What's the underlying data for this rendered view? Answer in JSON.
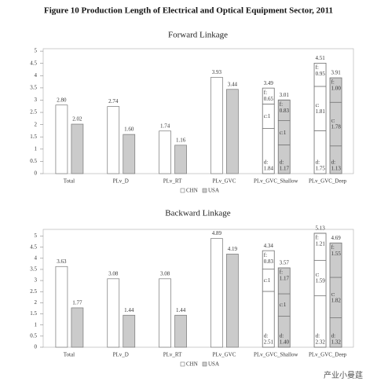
{
  "title": "Figure 10 Production Length of Electrical and Optical Equipment Sector, 2011",
  "watermark": "产业小曼莛",
  "chart_data": [
    {
      "type": "bar",
      "title": "Forward Linkage",
      "categories": [
        "Total",
        "PLv_D",
        "PLv_RT",
        "PLv_GVC",
        "PLv_GVC_Shallow",
        "PLv_GVC_Deep"
      ],
      "ylim": [
        0,
        5.1
      ],
      "yticks": [
        0,
        0.5,
        1,
        1.5,
        2,
        2.5,
        3,
        3.5,
        4,
        4.5,
        5
      ],
      "series": [
        {
          "name": "CHN",
          "color": "#ffffff",
          "values": [
            2.8,
            2.74,
            1.74,
            3.93,
            3.49,
            4.51
          ],
          "value_labels": [
            "2.80",
            "2.74",
            "1.74",
            "3.93",
            "3.49",
            "4.51"
          ],
          "segments": [
            null,
            null,
            null,
            null,
            [
              {
                "label": "d:",
                "value": 1.84,
                "value_label": "1.84"
              },
              {
                "label": "c:",
                "value": 1,
                "value_label": "1"
              },
              {
                "label": "f:",
                "value": 0.65,
                "value_label": "0.65"
              }
            ],
            [
              {
                "label": "d:",
                "value": 1.75,
                "value_label": "1.75"
              },
              {
                "label": "c:",
                "value": 1.81,
                "value_label": "1.81"
              },
              {
                "label": "f:",
                "value": 0.95,
                "value_label": "0.95"
              }
            ]
          ]
        },
        {
          "name": "USA",
          "color": "#cbcbcb",
          "values": [
            2.02,
            1.6,
            1.16,
            3.44,
            3.01,
            3.91
          ],
          "value_labels": [
            "2.02",
            "1.60",
            "1.16",
            "3.44",
            "3.01",
            "3.91"
          ],
          "segments": [
            null,
            null,
            null,
            null,
            [
              {
                "label": "d:",
                "value": 1.17,
                "value_label": "1.17"
              },
              {
                "label": "c:",
                "value": 1,
                "value_label": "1"
              },
              {
                "label": "f:",
                "value": 0.83,
                "value_label": "0.83"
              }
            ],
            [
              {
                "label": "d:",
                "value": 1.13,
                "value_label": "1.13"
              },
              {
                "label": "c:",
                "value": 1.78,
                "value_label": "1.78"
              },
              {
                "label": "f:",
                "value": 1,
                "value_label": "1.00"
              }
            ]
          ]
        }
      ]
    },
    {
      "type": "bar",
      "title": "Backward Linkage",
      "categories": [
        "Total",
        "PLv_D",
        "PLv_RT",
        "PLv_GVC",
        "PLv_GVC_Shallow",
        "PLv_GVC_Deep"
      ],
      "ylim": [
        0,
        5.3
      ],
      "yticks": [
        0,
        0.5,
        1,
        1.5,
        2,
        2.5,
        3,
        3.5,
        4,
        4.5,
        5
      ],
      "series": [
        {
          "name": "CHN",
          "color": "#ffffff",
          "values": [
            3.63,
            3.08,
            3.08,
            4.89,
            4.34,
            5.13
          ],
          "value_labels": [
            "3.63",
            "3.08",
            "3.08",
            "4.89",
            "4.34",
            "5.13"
          ],
          "segments": [
            null,
            null,
            null,
            null,
            [
              {
                "label": "d:",
                "value": 2.51,
                "value_label": "2.51"
              },
              {
                "label": "c:",
                "value": 1,
                "value_label": "1"
              },
              {
                "label": "f:",
                "value": 0.83,
                "value_label": "0.83"
              }
            ],
            [
              {
                "label": "d:",
                "value": 2.32,
                "value_label": "2.32"
              },
              {
                "label": "c:",
                "value": 1.59,
                "value_label": "1.59"
              },
              {
                "label": "f:",
                "value": 1.21,
                "value_label": "1.21"
              }
            ]
          ]
        },
        {
          "name": "USA",
          "color": "#cbcbcb",
          "values": [
            1.77,
            1.44,
            1.44,
            4.19,
            3.57,
            4.69
          ],
          "value_labels": [
            "1.77",
            "1.44",
            "1.44",
            "4.19",
            "3.57",
            "4.69"
          ],
          "segments": [
            null,
            null,
            null,
            null,
            [
              {
                "label": "d:",
                "value": 1.4,
                "value_label": "1.40"
              },
              {
                "label": "c:",
                "value": 1,
                "value_label": "1"
              },
              {
                "label": "f:",
                "value": 1.17,
                "value_label": "1.17"
              }
            ],
            [
              {
                "label": "d:",
                "value": 1.32,
                "value_label": "1.32"
              },
              {
                "label": "c:",
                "value": 1.82,
                "value_label": "1.82"
              },
              {
                "label": "f:",
                "value": 1.55,
                "value_label": "1.55"
              }
            ]
          ]
        }
      ]
    }
  ]
}
